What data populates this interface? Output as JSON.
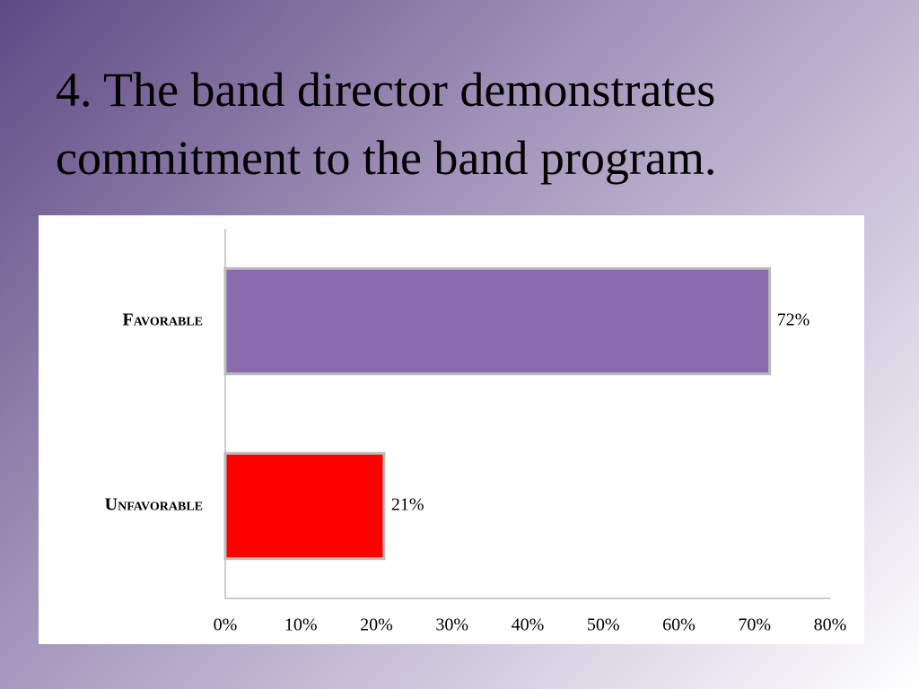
{
  "chart_data": {
    "type": "hbar",
    "title": "4. The band director demonstrates commitment to the band program.",
    "categories": [
      "Favorable",
      "Unfavorable"
    ],
    "values": [
      72,
      21
    ],
    "value_labels": [
      "72%",
      "21%"
    ],
    "colors": [
      "#8a6bae",
      "#ff0000"
    ],
    "xlim": [
      0,
      80
    ],
    "xticks": [
      {
        "value": 0,
        "label": "0%"
      },
      {
        "value": 10,
        "label": "10%"
      },
      {
        "value": 20,
        "label": "20%"
      },
      {
        "value": 30,
        "label": "30%"
      },
      {
        "value": 40,
        "label": "40%"
      },
      {
        "value": 50,
        "label": "50%"
      },
      {
        "value": 60,
        "label": "60%"
      },
      {
        "value": 70,
        "label": "70%"
      },
      {
        "value": 80,
        "label": "80%"
      }
    ],
    "grid": false
  }
}
